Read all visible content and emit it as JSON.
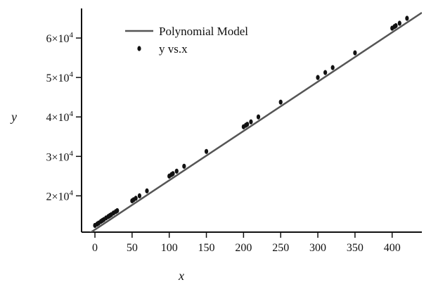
{
  "chart_data": {
    "type": "scatter",
    "xlabel": "x",
    "ylabel": "y",
    "xlim": [
      -18,
      440
    ],
    "ylim": [
      10800,
      67500
    ],
    "x_ticks": [
      0,
      50,
      100,
      150,
      200,
      250,
      300,
      350,
      400
    ],
    "y_ticks": [
      20000,
      30000,
      40000,
      50000,
      60000
    ],
    "y_tick_labels": [
      {
        "mantissa": "2",
        "exp": "4"
      },
      {
        "mantissa": "3",
        "exp": "4"
      },
      {
        "mantissa": "4",
        "exp": "4"
      },
      {
        "mantissa": "5",
        "exp": "4"
      },
      {
        "mantissa": "6",
        "exp": "4"
      }
    ],
    "legend": {
      "position": "top-left",
      "items": [
        {
          "label": "Polynomial Model",
          "kind": "line"
        },
        {
          "label": "y vs.x",
          "kind": "marker"
        }
      ]
    },
    "colors": {
      "line": "#555555",
      "marker": "#111111"
    },
    "model_line": {
      "x": [
        -18,
        440
      ],
      "y": [
        9180,
        66430
      ]
    },
    "series": [
      {
        "x": [
          0,
          3,
          5,
          8,
          10,
          12,
          15,
          18,
          20,
          22,
          25,
          28,
          30,
          50,
          52,
          55,
          60,
          70,
          100,
          103,
          105,
          110,
          120,
          150,
          200,
          203,
          205,
          210,
          220,
          250,
          300,
          310,
          320,
          350,
          400,
          403,
          405,
          410,
          420
        ],
        "y": [
          12500,
          12850,
          13100,
          13500,
          13750,
          14000,
          14400,
          14750,
          15000,
          15250,
          15650,
          16000,
          16250,
          18750,
          19000,
          19380,
          20000,
          21250,
          25000,
          25380,
          25630,
          26250,
          27500,
          31250,
          37500,
          37880,
          38130,
          38750,
          40000,
          43750,
          50000,
          51250,
          52500,
          56250,
          62500,
          62880,
          63130,
          63750,
          65000
        ]
      }
    ]
  }
}
